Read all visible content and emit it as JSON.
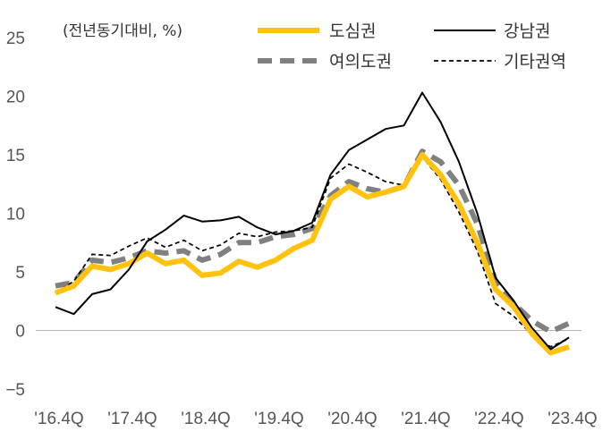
{
  "chart_data": {
    "type": "line",
    "unit_label": "(전년동기대비, %)",
    "ylim": [
      -5,
      25
    ],
    "yticks": [
      -5,
      0,
      5,
      10,
      15,
      20,
      25
    ],
    "x_tick_labels": [
      "'16.4Q",
      "'17.4Q",
      "'18.4Q",
      "'19.4Q",
      "'20.4Q",
      "'21.4Q",
      "'22.4Q",
      "'23.4Q"
    ],
    "x_tick_positions": [
      0,
      4,
      8,
      12,
      16,
      20,
      24,
      28
    ],
    "grid": false,
    "series": [
      {
        "name": "도심권",
        "color": "#FFC20E",
        "style": "solid-thick",
        "values": [
          3.2,
          3.8,
          5.5,
          5.2,
          5.7,
          6.6,
          5.7,
          6.0,
          4.7,
          4.9,
          5.9,
          5.4,
          6.0,
          7.0,
          7.7,
          11.2,
          12.3,
          11.4,
          11.8,
          12.3,
          15.0,
          13.3,
          10.8,
          7.5,
          3.5,
          2.0,
          -0.3,
          -1.9,
          -1.4
        ]
      },
      {
        "name": "강남권",
        "color": "#000000",
        "style": "solid-thin",
        "values": [
          2.0,
          1.4,
          3.1,
          3.5,
          5.2,
          7.6,
          8.6,
          9.8,
          9.3,
          9.4,
          9.7,
          8.8,
          8.2,
          8.5,
          9.2,
          13.3,
          15.4,
          16.3,
          17.2,
          17.5,
          20.3,
          17.8,
          14.4,
          10.0,
          4.5,
          2.5,
          0.2,
          -1.6,
          -0.6
        ]
      },
      {
        "name": "여의도권",
        "color": "#808080",
        "style": "dashed-thick",
        "values": [
          3.8,
          4.1,
          6.0,
          5.8,
          6.2,
          6.8,
          6.6,
          6.8,
          6.0,
          6.5,
          7.5,
          7.5,
          8.0,
          8.2,
          8.7,
          11.5,
          12.7,
          12.1,
          11.8,
          12.3,
          15.3,
          14.4,
          12.4,
          9.1,
          4.2,
          2.3,
          0.8,
          -0.1,
          0.6
        ]
      },
      {
        "name": "기타권역",
        "color": "#000000",
        "style": "dashed-thin",
        "values": [
          3.2,
          4.2,
          6.5,
          6.4,
          7.2,
          7.9,
          7.1,
          7.7,
          6.8,
          7.3,
          8.3,
          8.0,
          8.4,
          8.5,
          8.8,
          13.0,
          14.2,
          13.5,
          12.7,
          12.4,
          14.8,
          12.9,
          10.1,
          6.8,
          2.3,
          1.2,
          -0.4,
          -1.4,
          -0.7
        ]
      }
    ]
  }
}
